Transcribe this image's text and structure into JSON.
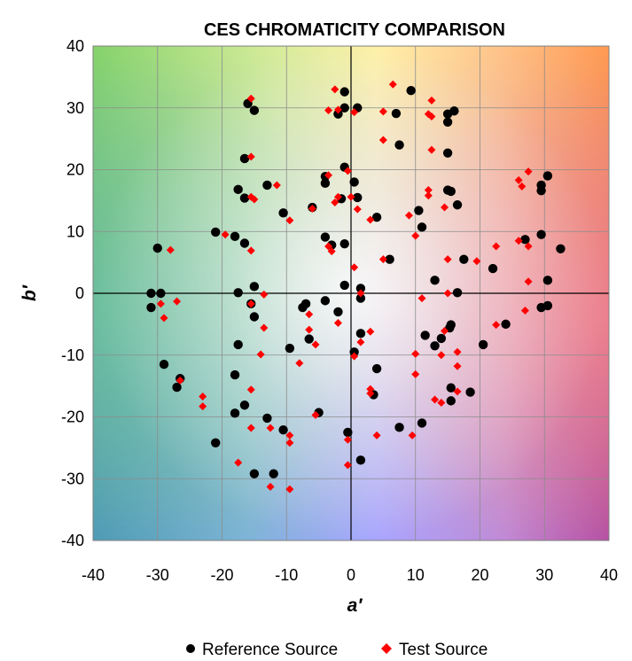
{
  "chart_data": {
    "type": "scatter",
    "title": "CES CHROMATICITY COMPARISON",
    "xlabel": "a′",
    "ylabel": "b′",
    "xlim": [
      -40,
      40
    ],
    "ylim": [
      -40,
      40
    ],
    "xticks": [
      "-40",
      "-30",
      "-20",
      "-10",
      "0",
      "10",
      "20",
      "30",
      "40"
    ],
    "yticks": [
      "-40",
      "-30",
      "-20",
      "-10",
      "0",
      "10",
      "20",
      "30",
      "40"
    ],
    "grid": true,
    "legend_position": "bottom",
    "series": [
      {
        "name": "Reference Source",
        "marker": "circle",
        "color": "#000000",
        "points": [
          [
            -1,
            32.6
          ],
          [
            9.3,
            32.8
          ],
          [
            -16,
            30.7
          ],
          [
            -15,
            29.6
          ],
          [
            -2,
            29
          ],
          [
            -1,
            30
          ],
          [
            1,
            30
          ],
          [
            7,
            29.1
          ],
          [
            15,
            29
          ],
          [
            16,
            29.5
          ],
          [
            15,
            27.7
          ],
          [
            7.5,
            24
          ],
          [
            15,
            22.7
          ],
          [
            -16.5,
            21.8
          ],
          [
            -1,
            20.4
          ],
          [
            30.5,
            19
          ],
          [
            -4,
            18.9
          ],
          [
            -4,
            17.8
          ],
          [
            -17.5,
            16.8
          ],
          [
            -13,
            17.5
          ],
          [
            0.5,
            18
          ],
          [
            15,
            16.7
          ],
          [
            15.5,
            16.5
          ],
          [
            29.5,
            17.5
          ],
          [
            29.5,
            16.6
          ],
          [
            -16.5,
            15.4
          ],
          [
            -1.5,
            15.3
          ],
          [
            1,
            15.5
          ],
          [
            16.5,
            14.3
          ],
          [
            -6,
            13.9
          ],
          [
            -10.5,
            13
          ],
          [
            10.5,
            13.4
          ],
          [
            4,
            12.3
          ],
          [
            11,
            10.7
          ],
          [
            -21,
            9.9
          ],
          [
            -18,
            9.2
          ],
          [
            -16.5,
            8.1
          ],
          [
            -4,
            9.1
          ],
          [
            -3,
            7.8
          ],
          [
            -1,
            8
          ],
          [
            29.5,
            9.5
          ],
          [
            27,
            8.7
          ],
          [
            6,
            5.5
          ],
          [
            17.5,
            5.5
          ],
          [
            22,
            4
          ],
          [
            32.5,
            7.2
          ],
          [
            -30,
            7.3
          ],
          [
            -31,
            0
          ],
          [
            -29.5,
            0
          ],
          [
            -31,
            -2.3
          ],
          [
            -17.5,
            0.1
          ],
          [
            -15,
            1.1
          ],
          [
            -1,
            1.3
          ],
          [
            1.5,
            0.8
          ],
          [
            13,
            2.1
          ],
          [
            16.5,
            0.1
          ],
          [
            30.5,
            2.1
          ],
          [
            -15.5,
            -1.7
          ],
          [
            -7,
            -1.7
          ],
          [
            -7.5,
            -2.3
          ],
          [
            -4,
            -1.2
          ],
          [
            -2,
            -3
          ],
          [
            1.5,
            -0.8
          ],
          [
            29.5,
            -2.3
          ],
          [
            30.5,
            -2
          ],
          [
            -15,
            -3.8
          ],
          [
            -6.5,
            -7.4
          ],
          [
            -17.5,
            -8.3
          ],
          [
            15.5,
            -5.1
          ],
          [
            15.3,
            -5.6
          ],
          [
            24,
            -5
          ],
          [
            1.5,
            -6.5
          ],
          [
            11.5,
            -6.8
          ],
          [
            14,
            -7.3
          ],
          [
            13,
            -8.5
          ],
          [
            20.5,
            -8.3
          ],
          [
            -9.5,
            -8.9
          ],
          [
            -29,
            -11.5
          ],
          [
            0.5,
            -9.5
          ],
          [
            4,
            -12.2
          ],
          [
            -18,
            -13.2
          ],
          [
            -26.5,
            -13.8
          ],
          [
            -27,
            -15.2
          ],
          [
            -5,
            -19.3
          ],
          [
            -16.5,
            -18.1
          ],
          [
            -18,
            -19.4
          ],
          [
            -13,
            -20.2
          ],
          [
            3.5,
            -16.4
          ],
          [
            15.5,
            -15.3
          ],
          [
            15.5,
            -17.4
          ],
          [
            18.5,
            -16
          ],
          [
            -10.5,
            -22.1
          ],
          [
            -0.5,
            -22.5
          ],
          [
            7.5,
            -21.7
          ],
          [
            11,
            -21
          ],
          [
            -21,
            -24.2
          ],
          [
            1.5,
            -27
          ],
          [
            -15,
            -29.2
          ],
          [
            -12,
            -29.2
          ]
        ]
      },
      {
        "name": "Test Source",
        "marker": "diamond",
        "color": "#ff0000",
        "points": [
          [
            6.5,
            33.8
          ],
          [
            -2.5,
            33
          ],
          [
            12.5,
            31.2
          ],
          [
            -15.5,
            31.5
          ],
          [
            -3.5,
            29.6
          ],
          [
            -2,
            29.7
          ],
          [
            0.5,
            29.3
          ],
          [
            5,
            29.4
          ],
          [
            12.5,
            28.6
          ],
          [
            12,
            29
          ],
          [
            5,
            24.8
          ],
          [
            12.5,
            23.2
          ],
          [
            -15.5,
            22.1
          ],
          [
            27.5,
            19.7
          ],
          [
            -0.5,
            19.8
          ],
          [
            -3.5,
            19.1
          ],
          [
            26,
            18.3
          ],
          [
            -11.5,
            17.5
          ],
          [
            -15.5,
            15.6
          ],
          [
            -15,
            15.2
          ],
          [
            26.5,
            17.3
          ],
          [
            12,
            16.7
          ],
          [
            12,
            15.8
          ],
          [
            -2,
            15.6
          ],
          [
            -2.5,
            14.7
          ],
          [
            0,
            15.6
          ],
          [
            -6,
            13.7
          ],
          [
            1,
            13.6
          ],
          [
            14.5,
            13.9
          ],
          [
            9,
            12.6
          ],
          [
            3,
            11.9
          ],
          [
            -9.5,
            11.8
          ],
          [
            10,
            9.3
          ],
          [
            -19.5,
            9.5
          ],
          [
            -15.5,
            6.9
          ],
          [
            -3.5,
            7.6
          ],
          [
            -3,
            6.8
          ],
          [
            26,
            8.5
          ],
          [
            27.5,
            7.6
          ],
          [
            5,
            5.5
          ],
          [
            19.5,
            5.2
          ],
          [
            15,
            5.5
          ],
          [
            22.5,
            7.6
          ],
          [
            -28,
            7
          ],
          [
            0.5,
            4.2
          ],
          [
            -27,
            -1.3
          ],
          [
            -29.5,
            -1.7
          ],
          [
            -29,
            -4
          ],
          [
            -13.5,
            -0.2
          ],
          [
            1.5,
            0
          ],
          [
            11,
            -0.8
          ],
          [
            15,
            0
          ],
          [
            27.5,
            1.9
          ],
          [
            -15.5,
            -1.7
          ],
          [
            -6.5,
            -3.4
          ],
          [
            -2,
            -4.8
          ],
          [
            27,
            -2.8
          ],
          [
            22.5,
            -5.1
          ],
          [
            -13.5,
            -5.6
          ],
          [
            -6.5,
            -5.9
          ],
          [
            1.5,
            -7.9
          ],
          [
            3,
            -6.2
          ],
          [
            14.5,
            -6.1
          ],
          [
            14,
            -10
          ],
          [
            16.5,
            -9.5
          ],
          [
            -5.5,
            -8.3
          ],
          [
            -14,
            -9.9
          ],
          [
            -8,
            -11.3
          ],
          [
            10,
            -9.8
          ],
          [
            16.5,
            -11.8
          ],
          [
            0.5,
            -10.2
          ],
          [
            -26.5,
            -14.1
          ],
          [
            -23,
            -16.7
          ],
          [
            -23,
            -18.3
          ],
          [
            -15.5,
            -15.6
          ],
          [
            3,
            -15.5
          ],
          [
            3,
            -16.2
          ],
          [
            10,
            -13.1
          ],
          [
            13,
            -17.2
          ],
          [
            14,
            -17.7
          ],
          [
            16.5,
            -15.9
          ],
          [
            -15.5,
            -21.8
          ],
          [
            -12.5,
            -21.8
          ],
          [
            -5.5,
            -19.7
          ],
          [
            -9.5,
            -23
          ],
          [
            -9.5,
            -24.2
          ],
          [
            -0.5,
            -23.7
          ],
          [
            4,
            -23
          ],
          [
            9.5,
            -23
          ],
          [
            -17.5,
            -27.4
          ],
          [
            -0.5,
            -27.8
          ],
          [
            -12.5,
            -31.3
          ],
          [
            -9.5,
            -31.7
          ]
        ]
      }
    ]
  }
}
